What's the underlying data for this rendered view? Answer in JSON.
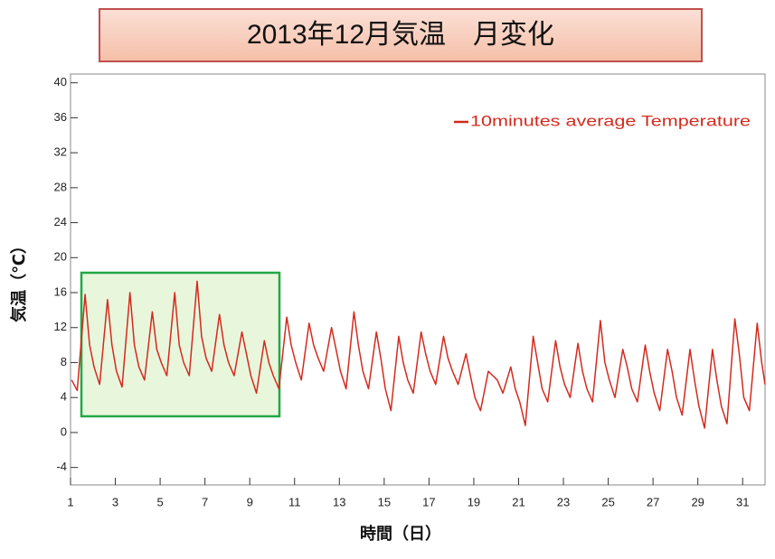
{
  "chart_data": {
    "type": "line",
    "title": "2013年12月気温　月変化",
    "xlabel": "時間（日）",
    "ylabel": "気温（℃）",
    "xlim": [
      1,
      32
    ],
    "ylim": [
      -6,
      41
    ],
    "xticks": [
      1,
      3,
      5,
      7,
      9,
      11,
      13,
      15,
      17,
      19,
      21,
      23,
      25,
      27,
      29,
      31
    ],
    "yticks": [
      -4,
      0,
      4,
      8,
      12,
      16,
      20,
      24,
      28,
      32,
      36,
      40
    ],
    "legend": "top-right",
    "x": [
      1.05,
      1.3,
      1.65,
      1.85,
      2.05,
      2.3,
      2.65,
      2.85,
      3.05,
      3.3,
      3.65,
      3.85,
      4.05,
      4.3,
      4.65,
      4.85,
      5.05,
      5.3,
      5.65,
      5.85,
      6.05,
      6.3,
      6.65,
      6.85,
      7.05,
      7.3,
      7.65,
      7.85,
      8.05,
      8.3,
      8.65,
      8.85,
      9.05,
      9.3,
      9.65,
      9.85,
      10.05,
      10.3,
      10.65,
      10.85,
      11.05,
      11.3,
      11.65,
      11.85,
      12.05,
      12.3,
      12.65,
      12.85,
      13.05,
      13.3,
      13.65,
      13.85,
      14.05,
      14.3,
      14.65,
      14.85,
      15.05,
      15.3,
      15.65,
      15.85,
      16.05,
      16.3,
      16.65,
      16.85,
      17.05,
      17.3,
      17.65,
      17.85,
      18.05,
      18.3,
      18.65,
      18.85,
      19.05,
      19.3,
      19.65,
      19.85,
      20.05,
      20.3,
      20.65,
      20.85,
      21.05,
      21.3,
      21.65,
      21.85,
      22.05,
      22.3,
      22.65,
      22.85,
      23.05,
      23.3,
      23.65,
      23.85,
      24.05,
      24.3,
      24.65,
      24.85,
      25.05,
      25.3,
      25.65,
      25.85,
      26.05,
      26.3,
      26.65,
      26.85,
      27.05,
      27.3,
      27.65,
      27.85,
      28.05,
      28.3,
      28.65,
      28.85,
      29.05,
      29.3,
      29.65,
      29.85,
      30.05,
      30.3,
      30.65,
      30.85,
      31.05,
      31.3,
      31.65,
      31.85,
      32
    ],
    "series": [
      {
        "name": "10minutes average Temperature",
        "color": "#d42a1e",
        "values": [
          6,
          4.8,
          15.8,
          10,
          7.5,
          5.5,
          15.2,
          10,
          7,
          5.2,
          16,
          10,
          7.5,
          6,
          13.8,
          9.5,
          8,
          6.5,
          16,
          10,
          8,
          6.5,
          17.3,
          11,
          8.5,
          7,
          13.5,
          10,
          8,
          6.5,
          11.5,
          9,
          6.5,
          4.5,
          10.5,
          8,
          6.5,
          5,
          13.2,
          10,
          8,
          6,
          12.5,
          10,
          8.5,
          7,
          12,
          9.5,
          7,
          5,
          13.8,
          10,
          7,
          5,
          11.5,
          8.5,
          5,
          2.5,
          11,
          8,
          6,
          4.5,
          11.5,
          9,
          7,
          5.5,
          11,
          8.5,
          7,
          5.5,
          9,
          6.5,
          4,
          2.5,
          7,
          6.5,
          6,
          4.5,
          7.5,
          5,
          3.5,
          0.8,
          11,
          8,
          5,
          3.5,
          10.5,
          7.5,
          5.5,
          4,
          10.2,
          7,
          5,
          3.5,
          12.8,
          8,
          6,
          4,
          9.5,
          7.5,
          5,
          3.5,
          10,
          7,
          4.5,
          2.5,
          9.5,
          7,
          4,
          2,
          9.5,
          6,
          3,
          0.5,
          9.5,
          6,
          3,
          1,
          13,
          9,
          4,
          2.5,
          12.5,
          8,
          5.5
        ]
      }
    ]
  }
}
